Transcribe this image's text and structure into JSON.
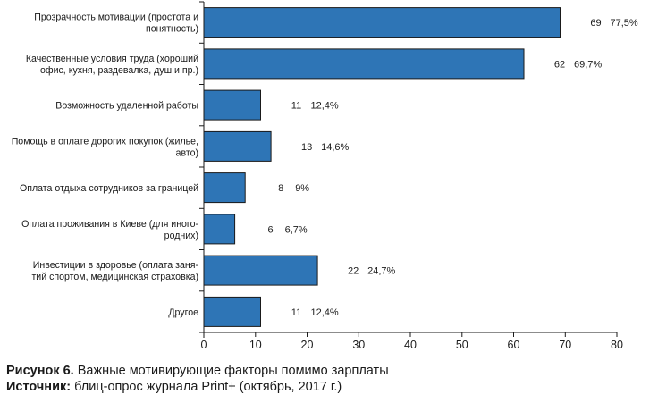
{
  "chart_data": {
    "type": "bar",
    "orientation": "horizontal",
    "categories": [
      [
        "Прозрачность мотивации (простота и",
        "понятность)"
      ],
      [
        "Качественные условия труда (хороший",
        "офис, кухня, раздевалка, душ и пр.)"
      ],
      [
        "Возможность удаленной работы"
      ],
      [
        "Помощь в оплате дорогих покупок (жилье,",
        "авто)"
      ],
      [
        "Оплата отдыха сотрудников за границей"
      ],
      [
        "Оплата проживания в Киеве (для иного-",
        "родних)"
      ],
      [
        "Инвестиции в здоровье (оплата заня-",
        "тий спортом, медицинская страховка)"
      ],
      [
        "Другое"
      ]
    ],
    "values": [
      69,
      62,
      11,
      13,
      8,
      6,
      22,
      11
    ],
    "value_labels": [
      "69",
      "62",
      "11",
      "13",
      "8",
      "6",
      "22",
      "11"
    ],
    "percent_labels": [
      "77,5%",
      "69,7%",
      "12,4%",
      "14,6%",
      "9%",
      "6,7%",
      "24,7%",
      "12,4%"
    ],
    "xlim": [
      0,
      80
    ],
    "xticks": [
      0,
      10,
      20,
      30,
      40,
      50,
      60,
      70,
      80
    ],
    "bar_color": "#2e75b6",
    "bar_edge_color": "#1a1a1a",
    "grid": false
  },
  "caption": {
    "figure_label": "Рисунок 6.",
    "figure_text": " Важные мотивирующие факторы помимо зарплаты",
    "source_label": "Источник:",
    "source_text": " блиц-опрос журнала Print+ (октябрь, 2017 г.)"
  }
}
